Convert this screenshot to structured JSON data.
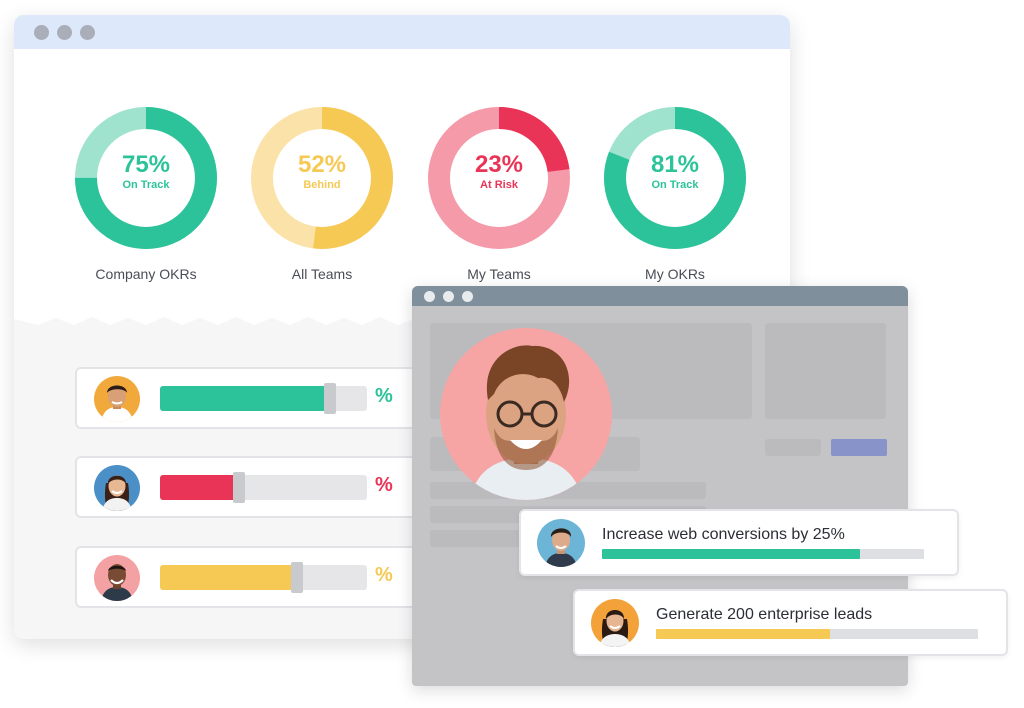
{
  "colors": {
    "green": "#2cc29a",
    "green_light": "#9fe3cf",
    "yellow": "#f6c955",
    "yellow_light": "#fbe2a8",
    "red": "#ea3457",
    "red_light": "#f49aa9",
    "window_titlebar": "#dde8fb",
    "secondary_titlebar": "#7f8f9b",
    "accent_button": "#8893c9"
  },
  "donuts": [
    {
      "percent": "75%",
      "status": "On Track",
      "label": "Company OKRs",
      "progress": 0.75,
      "color": "#2cc29a",
      "light": "#9fe3cf"
    },
    {
      "percent": "52%",
      "status": "Behind",
      "label": "All Teams",
      "progress": 0.52,
      "color": "#f6c955",
      "light": "#fbe2a8"
    },
    {
      "percent": "23%",
      "status": "At Risk",
      "label": "My Teams",
      "progress": 0.23,
      "color": "#ea3457",
      "light": "#f49aa9"
    },
    {
      "percent": "81%",
      "status": "On Track",
      "label": "My OKRs",
      "progress": 0.81,
      "color": "#2cc29a",
      "light": "#9fe3cf"
    }
  ],
  "progress_rows": [
    {
      "symbol": "%",
      "progress": 0.82,
      "color": "#2cc29a",
      "avatar_icon": "person-avatar-icon"
    },
    {
      "symbol": "%",
      "progress": 0.38,
      "color": "#ea3457",
      "avatar_icon": "person-avatar-icon"
    },
    {
      "symbol": "%",
      "progress": 0.66,
      "color": "#f6c955",
      "avatar_icon": "person-avatar-icon"
    }
  ],
  "objectives": [
    {
      "title": "Increase web conversions by 25%",
      "progress": 0.8,
      "color": "#2cc29a"
    },
    {
      "title": "Generate 200 enterprise leads",
      "progress": 0.54,
      "color": "#f6c955"
    }
  ]
}
